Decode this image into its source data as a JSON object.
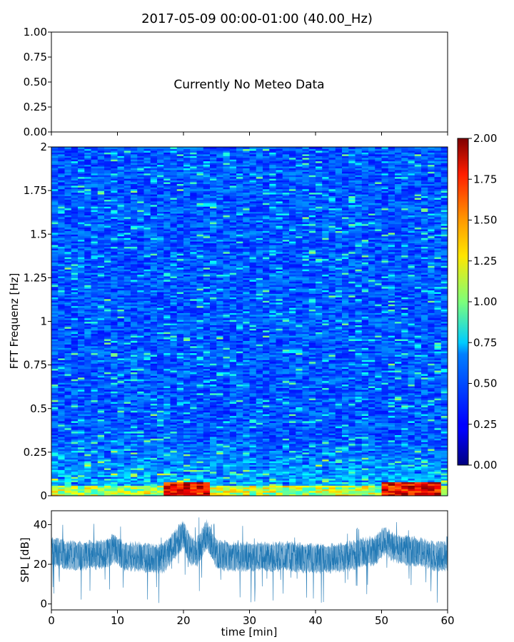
{
  "chart_data": [
    {
      "type": "text",
      "title": "2017-05-09 00:00-01:00 (40.00_Hz)",
      "message": "Currently No Meteo Data",
      "ylim": [
        0,
        1
      ],
      "yticks": [
        "0.00",
        "0.25",
        "0.50",
        "0.75",
        "1.00"
      ],
      "xlim": [
        0,
        60
      ],
      "grid": false
    },
    {
      "type": "heatmap",
      "ylabel": "FFT Frequenz [Hz]",
      "yticks": [
        "0",
        "0.25",
        "0.5",
        "0.75",
        "1",
        "1.25",
        "1.5",
        "1.75",
        "2"
      ],
      "ylim": [
        0,
        2
      ],
      "xlim": [
        0,
        60
      ],
      "colormap": "jet",
      "colorbar": {
        "range": [
          0,
          2
        ],
        "ticks": [
          "0.00",
          "0.25",
          "0.50",
          "0.75",
          "1.00",
          "1.25",
          "1.50",
          "1.75",
          "2.00"
        ]
      },
      "description_of_values": "Mostly low values (~0.2-0.5) across all frequencies; higher values (0.75-2.0) near 0 Hz, strongest around 17-24 min and 50-59 min.",
      "hotspots": [
        {
          "x_range": [
            17,
            24
          ],
          "y_range": [
            0,
            0.08
          ],
          "value": 2.0
        },
        {
          "x_range": [
            50,
            59
          ],
          "y_range": [
            0,
            0.08
          ],
          "value": 2.0
        }
      ],
      "grid": false
    },
    {
      "type": "line",
      "ylabel": "SPL [dB]",
      "xlabel": "time [min]",
      "ylim": [
        -3,
        47
      ],
      "xlim": [
        0,
        60
      ],
      "xticks": [
        "0",
        "10",
        "20",
        "30",
        "40",
        "50",
        "60"
      ],
      "yticks": [
        "0",
        "20",
        "40"
      ],
      "color": "#1f77b4",
      "series": [
        {
          "x": [
            0,
            2,
            4,
            6,
            8,
            9.5,
            11,
            13,
            15,
            17,
            18.5,
            20,
            21,
            22,
            23.5,
            25,
            27,
            30,
            33,
            36,
            39,
            42,
            45,
            47,
            49,
            50.5,
            52,
            54,
            56,
            58,
            60
          ],
          "y": [
            26,
            25,
            24,
            25,
            25,
            28,
            24,
            24,
            23,
            23,
            29,
            35,
            27,
            26,
            35,
            25,
            24,
            24,
            24,
            24,
            23,
            23,
            24,
            26,
            27,
            32,
            28,
            27,
            26,
            24,
            24
          ]
        }
      ],
      "grid": false
    }
  ],
  "colors": {
    "line": "#1f77b4",
    "axes": "#000000",
    "background": "#ffffff"
  }
}
